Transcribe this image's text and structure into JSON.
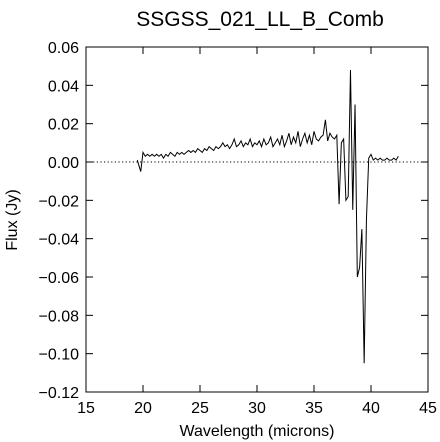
{
  "chart_data": {
    "type": "line",
    "title": "SSGSS_021_LL_B_Comb",
    "xlabel": "Wavelength (microns)",
    "ylabel": "Flux (Jy)",
    "xlim": [
      15,
      45
    ],
    "ylim": [
      -0.12,
      0.06
    ],
    "xticks": [
      15,
      20,
      25,
      30,
      35,
      40,
      45
    ],
    "yticks": [
      -0.12,
      -0.1,
      -0.08,
      -0.06,
      -0.04,
      -0.02,
      0.0,
      0.02,
      0.04,
      0.06
    ],
    "xtick_labels": [
      "15",
      "20",
      "25",
      "30",
      "35",
      "40",
      "45"
    ],
    "ytick_labels": [
      "−0.12",
      "−0.10",
      "−0.08",
      "−0.06",
      "−0.04",
      "−0.02",
      "0.00",
      "0.02",
      "0.04",
      "0.06"
    ],
    "reference_line": {
      "y": 0,
      "style": "dotted"
    },
    "grid": false,
    "series": [
      {
        "x": [
          19.5,
          19.8,
          20.0,
          20.2,
          20.4,
          20.6,
          20.8,
          21.0,
          21.2,
          21.4,
          21.6,
          21.8,
          22.0,
          22.2,
          22.4,
          22.6,
          22.8,
          23.0,
          23.2,
          23.4,
          23.6,
          23.8,
          24.0,
          24.2,
          24.4,
          24.6,
          24.8,
          25.0,
          25.2,
          25.4,
          25.6,
          25.8,
          26.0,
          26.2,
          26.4,
          26.6,
          26.8,
          27.0,
          27.2,
          27.4,
          27.6,
          27.8,
          28.0,
          28.2,
          28.4,
          28.6,
          28.8,
          29.0,
          29.2,
          29.4,
          29.6,
          29.8,
          30.0,
          30.2,
          30.4,
          30.6,
          30.8,
          31.0,
          31.2,
          31.4,
          31.6,
          31.8,
          32.0,
          32.2,
          32.4,
          32.6,
          32.8,
          33.0,
          33.2,
          33.4,
          33.6,
          33.8,
          34.0,
          34.2,
          34.4,
          34.6,
          34.8,
          35.0,
          35.2,
          35.4,
          35.6,
          35.8,
          36.0,
          36.2,
          36.4,
          36.6,
          36.8,
          37.0,
          37.2,
          37.4,
          37.6,
          37.8,
          38.0,
          38.2,
          38.4,
          38.6,
          38.8,
          39.0,
          39.2,
          39.4,
          39.6,
          39.8,
          40.0,
          40.2,
          40.4,
          40.6,
          40.8,
          41.0,
          41.2,
          41.4,
          41.6,
          41.8,
          42.0,
          42.2,
          42.4
        ],
        "y": [
          0.001,
          -0.005,
          0.005,
          0.003,
          0.004,
          0.003,
          0.004,
          0.003,
          0.004,
          0.003,
          0.004,
          0.002,
          0.004,
          0.003,
          0.005,
          0.004,
          0.003,
          0.005,
          0.004,
          0.005,
          0.004,
          0.005,
          0.006,
          0.005,
          0.006,
          0.005,
          0.007,
          0.006,
          0.005,
          0.007,
          0.006,
          0.008,
          0.007,
          0.006,
          0.008,
          0.007,
          0.008,
          0.01,
          0.008,
          0.009,
          0.007,
          0.009,
          0.012,
          0.008,
          0.009,
          0.011,
          0.008,
          0.01,
          0.009,
          0.012,
          0.008,
          0.01,
          0.009,
          0.011,
          0.008,
          0.012,
          0.009,
          0.01,
          0.013,
          0.008,
          0.01,
          0.012,
          0.009,
          0.014,
          0.008,
          0.011,
          0.015,
          0.009,
          0.013,
          0.01,
          0.016,
          0.008,
          0.012,
          0.015,
          0.01,
          0.014,
          0.009,
          0.016,
          0.012,
          0.011,
          0.013,
          0.014,
          0.022,
          0.011,
          0.015,
          0.013,
          0.012,
          0.014,
          -0.022,
          0.01,
          0.012,
          -0.02,
          -0.018,
          0.048,
          -0.025,
          0.03,
          -0.06,
          -0.055,
          -0.035,
          -0.105,
          -0.03,
          0.002,
          0.004,
          0.001,
          0.002,
          0.001,
          0.002,
          0.001,
          0.001,
          0.002,
          0.001,
          0.001,
          0.002,
          0.001,
          0.003
        ]
      }
    ]
  }
}
